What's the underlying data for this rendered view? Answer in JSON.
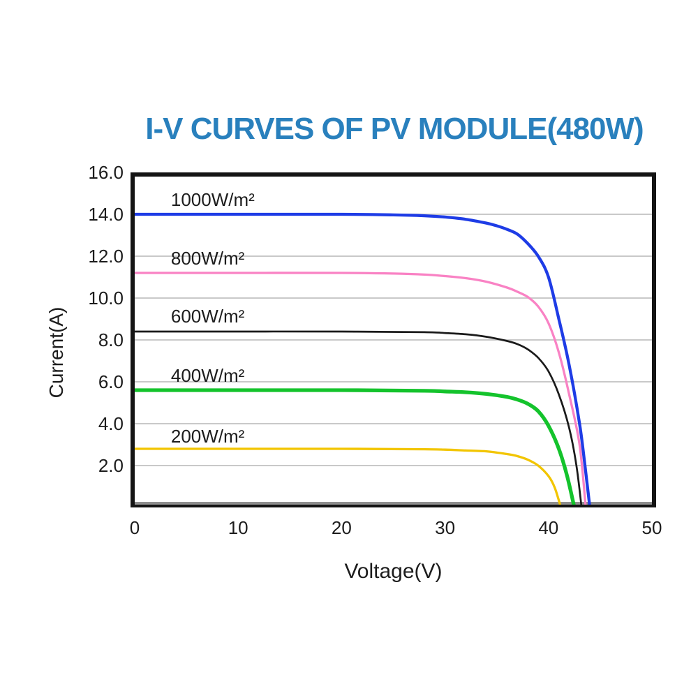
{
  "chart_data": {
    "type": "line",
    "title": "I-V CURVES OF PV MODULE(480W)",
    "title_color": "#2980bd",
    "xlabel": "Voltage(V)",
    "ylabel": "Current(A)",
    "xlim": [
      0,
      50
    ],
    "ylim": [
      0,
      16
    ],
    "xticks": [
      {
        "value": 0,
        "label": "0"
      },
      {
        "value": 10,
        "label": "10"
      },
      {
        "value": 20,
        "label": "20"
      },
      {
        "value": 30,
        "label": "30"
      },
      {
        "value": 40,
        "label": "40"
      },
      {
        "value": 50,
        "label": "50"
      }
    ],
    "yticks": [
      {
        "value": 2,
        "label": "2.0"
      },
      {
        "value": 4,
        "label": "4.0"
      },
      {
        "value": 6,
        "label": "6.0"
      },
      {
        "value": 8,
        "label": "8.0"
      },
      {
        "value": 10,
        "label": "10.0"
      },
      {
        "value": 12,
        "label": "12.0"
      },
      {
        "value": 14,
        "label": "14.0"
      },
      {
        "value": 16,
        "label": "16.0"
      }
    ],
    "grid": {
      "horizontal": true,
      "vertical": false,
      "color": "#c9c9c9"
    },
    "legend_position": "labels-inline-left",
    "frame_color": "#141414",
    "baseline_shadow_color": "#8f8f8f",
    "series": [
      {
        "name": "1000W/m²",
        "slug": "1000wm2",
        "irradiance_w_m2": 1000,
        "color": "#1e3ce6",
        "stroke_width": 4.3,
        "isc_a": 14.0,
        "voc_v": 44.0,
        "label_at": {
          "v": 3.5,
          "i": 14.63
        },
        "points": [
          [
            0,
            14.0
          ],
          [
            10,
            14.0
          ],
          [
            20,
            14.0
          ],
          [
            25,
            13.97
          ],
          [
            28,
            13.93
          ],
          [
            30,
            13.87
          ],
          [
            32,
            13.76
          ],
          [
            34,
            13.58
          ],
          [
            35,
            13.45
          ],
          [
            36,
            13.28
          ],
          [
            37,
            13.05
          ],
          [
            38,
            12.6
          ],
          [
            39,
            12.0
          ],
          [
            40,
            11.0
          ],
          [
            41,
            9.0
          ],
          [
            42,
            6.8
          ],
          [
            43,
            4.0
          ],
          [
            43.5,
            2.1
          ],
          [
            44,
            0
          ]
        ]
      },
      {
        "name": "800W/m²",
        "slug": "800wm2",
        "irradiance_w_m2": 800,
        "color": "#f982c4",
        "stroke_width": 3.3,
        "isc_a": 11.2,
        "voc_v": 43.6,
        "label_at": {
          "v": 3.5,
          "i": 11.83
        },
        "points": [
          [
            0,
            11.2
          ],
          [
            10,
            11.2
          ],
          [
            20,
            11.2
          ],
          [
            25,
            11.17
          ],
          [
            28,
            11.12
          ],
          [
            30,
            11.05
          ],
          [
            32,
            10.95
          ],
          [
            34,
            10.78
          ],
          [
            36,
            10.5
          ],
          [
            37,
            10.3
          ],
          [
            38,
            10.05
          ],
          [
            39,
            9.6
          ],
          [
            40,
            8.8
          ],
          [
            41,
            7.4
          ],
          [
            42,
            5.4
          ],
          [
            43,
            3.0
          ],
          [
            43.6,
            0
          ]
        ]
      },
      {
        "name": "600W/m²",
        "slug": "600wm2",
        "irradiance_w_m2": 600,
        "color": "#1a1a1a",
        "stroke_width": 2.7,
        "isc_a": 8.4,
        "voc_v": 43.2,
        "label_at": {
          "v": 3.5,
          "i": 9.07
        },
        "points": [
          [
            0,
            8.4
          ],
          [
            10,
            8.4
          ],
          [
            20,
            8.4
          ],
          [
            28,
            8.37
          ],
          [
            30,
            8.33
          ],
          [
            32,
            8.27
          ],
          [
            34,
            8.15
          ],
          [
            36,
            7.95
          ],
          [
            37,
            7.8
          ],
          [
            38,
            7.55
          ],
          [
            39,
            7.15
          ],
          [
            40,
            6.5
          ],
          [
            41,
            5.4
          ],
          [
            42,
            3.8
          ],
          [
            42.7,
            2.0
          ],
          [
            43.2,
            0
          ]
        ]
      },
      {
        "name": "400W/m²",
        "slug": "400wm2",
        "irradiance_w_m2": 400,
        "color": "#14c32c",
        "stroke_width": 5.3,
        "isc_a": 5.6,
        "voc_v": 42.5,
        "label_at": {
          "v": 3.5,
          "i": 6.23
        },
        "points": [
          [
            0,
            5.6
          ],
          [
            10,
            5.6
          ],
          [
            20,
            5.6
          ],
          [
            28,
            5.57
          ],
          [
            30,
            5.54
          ],
          [
            32,
            5.5
          ],
          [
            34,
            5.42
          ],
          [
            36,
            5.28
          ],
          [
            37,
            5.15
          ],
          [
            38,
            4.95
          ],
          [
            39,
            4.6
          ],
          [
            40,
            3.9
          ],
          [
            41,
            2.8
          ],
          [
            41.8,
            1.5
          ],
          [
            42.5,
            0
          ]
        ]
      },
      {
        "name": "200W/m²",
        "slug": "200wm2",
        "irradiance_w_m2": 200,
        "color": "#f2c500",
        "stroke_width": 3.3,
        "isc_a": 2.8,
        "voc_v": 41.2,
        "label_at": {
          "v": 3.5,
          "i": 3.33
        },
        "points": [
          [
            0,
            2.8
          ],
          [
            10,
            2.8
          ],
          [
            20,
            2.8
          ],
          [
            28,
            2.78
          ],
          [
            30,
            2.76
          ],
          [
            32,
            2.72
          ],
          [
            34,
            2.68
          ],
          [
            35,
            2.62
          ],
          [
            36,
            2.55
          ],
          [
            37,
            2.45
          ],
          [
            38,
            2.28
          ],
          [
            39,
            2.0
          ],
          [
            40,
            1.5
          ],
          [
            40.6,
            0.95
          ],
          [
            41.2,
            0
          ]
        ]
      }
    ]
  }
}
